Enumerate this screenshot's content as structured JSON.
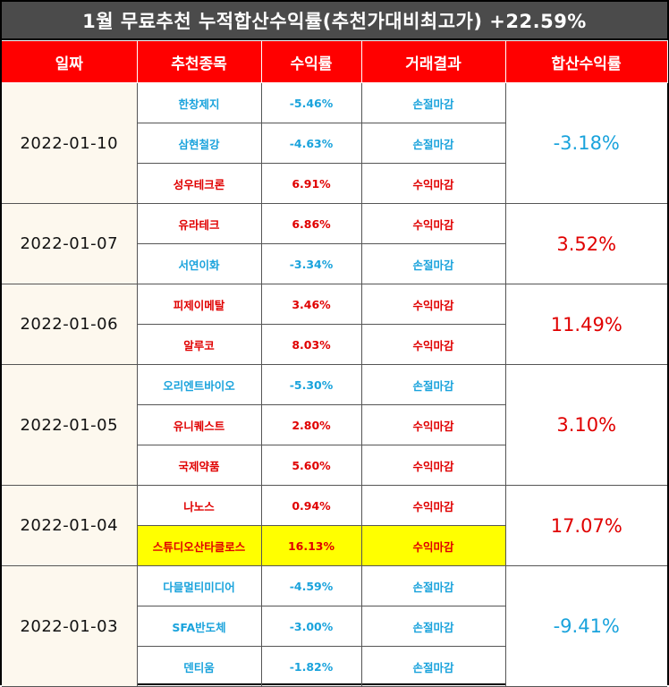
{
  "title": "1월 무료추천 누적합산수익률(추천가대비최고가) +22.59%",
  "headers": [
    "일짜",
    "추천종목",
    "수익률",
    "거래결과",
    "합산수익률"
  ],
  "colors": {
    "profit": "#e00000",
    "loss": "#1aa3dc",
    "header_bg": "#ff0000",
    "title_bg": "#4b4b4b",
    "highlight": "#ffff00",
    "date_bg": "#fdf8ee"
  },
  "groups": [
    {
      "date": "2022-01-10",
      "total": "-3.18%",
      "total_type": "loss",
      "rows": [
        {
          "stock": "한창제지",
          "ret": "-5.46%",
          "result": "손절마감",
          "type": "loss"
        },
        {
          "stock": "삼현철강",
          "ret": "-4.63%",
          "result": "손절마감",
          "type": "loss"
        },
        {
          "stock": "성우테크론",
          "ret": "6.91%",
          "result": "수익마감",
          "type": "profit"
        }
      ]
    },
    {
      "date": "2022-01-07",
      "total": "3.52%",
      "total_type": "profit",
      "rows": [
        {
          "stock": "유라테크",
          "ret": "6.86%",
          "result": "수익마감",
          "type": "profit"
        },
        {
          "stock": "서연이화",
          "ret": "-3.34%",
          "result": "손절마감",
          "type": "loss"
        }
      ]
    },
    {
      "date": "2022-01-06",
      "total": "11.49%",
      "total_type": "profit",
      "rows": [
        {
          "stock": "피제이메탈",
          "ret": "3.46%",
          "result": "수익마감",
          "type": "profit"
        },
        {
          "stock": "알루코",
          "ret": "8.03%",
          "result": "수익마감",
          "type": "profit"
        }
      ]
    },
    {
      "date": "2022-01-05",
      "total": "3.10%",
      "total_type": "profit",
      "rows": [
        {
          "stock": "오리엔트바이오",
          "ret": "-5.30%",
          "result": "손절마감",
          "type": "loss"
        },
        {
          "stock": "유니퀘스트",
          "ret": "2.80%",
          "result": "수익마감",
          "type": "profit"
        },
        {
          "stock": "국제약품",
          "ret": "5.60%",
          "result": "수익마감",
          "type": "profit"
        }
      ]
    },
    {
      "date": "2022-01-04",
      "total": "17.07%",
      "total_type": "profit",
      "rows": [
        {
          "stock": "나노스",
          "ret": "0.94%",
          "result": "수익마감",
          "type": "profit"
        },
        {
          "stock": "스튜디오산타클로스",
          "ret": "16.13%",
          "result": "수익마감",
          "type": "profit",
          "highlight": true
        }
      ]
    },
    {
      "date": "2022-01-03",
      "total": "-9.41%",
      "total_type": "loss",
      "rows": [
        {
          "stock": "다믈멀티미디어",
          "ret": "-4.59%",
          "result": "손절마감",
          "type": "loss"
        },
        {
          "stock": "SFA반도체",
          "ret": "-3.00%",
          "result": "손절마감",
          "type": "loss"
        },
        {
          "stock": "덴티움",
          "ret": "-1.82%",
          "result": "손절마감",
          "type": "loss"
        }
      ]
    }
  ]
}
